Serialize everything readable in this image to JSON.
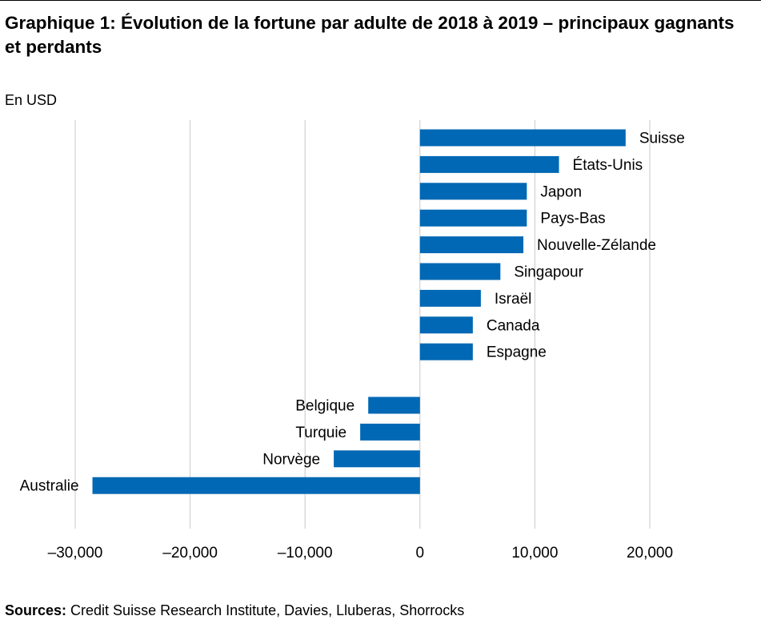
{
  "title": "Graphique 1: Évolution de la fortune par adulte de 2018 à 2019 – principaux gagnants et perdants",
  "unit_label": "En USD",
  "source": {
    "label": "Sources:",
    "text": " Credit Suisse Research Institute, Davies, Lluberas, Shorrocks"
  },
  "colors": {
    "bar": "#0068b4",
    "grid": "#c8c8c8"
  },
  "chart_data": {
    "type": "bar",
    "orientation": "horizontal",
    "categories": [
      "Suisse",
      "États-Unis",
      "Japon",
      "Pays-Bas",
      "Nouvelle-Zélande",
      "Singapour",
      "Israël",
      "Canada",
      "Espagne",
      "Belgique",
      "Turquie",
      "Norvège",
      "Australie"
    ],
    "values": [
      17900,
      12100,
      9300,
      9300,
      9000,
      7000,
      5300,
      4600,
      4600,
      -4500,
      -5200,
      -7500,
      -28500
    ],
    "xlim": [
      -30000,
      20000
    ],
    "xticks": [
      -30000,
      -20000,
      -10000,
      0,
      10000,
      20000
    ],
    "xtick_labels": [
      "–30,000",
      "–20,000",
      "–10,000",
      "0",
      "10,000",
      "20,000"
    ],
    "grid": true,
    "xlabel": "",
    "ylabel": "En USD"
  }
}
